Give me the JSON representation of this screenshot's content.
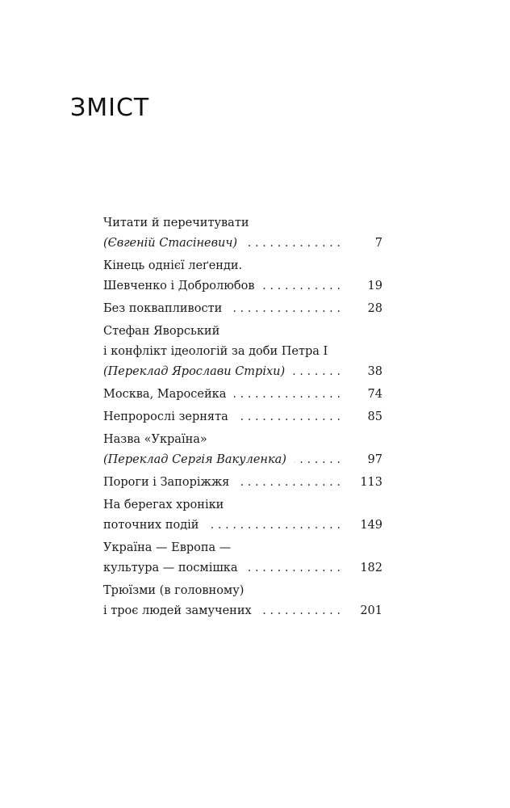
{
  "title": "ЗМІСТ",
  "entries": [
    {
      "lines": [
        {
          "text": "Читати й перечитувати",
          "italic": false
        },
        {
          "text": "(Євгеній Стасіневич)",
          "italic": true
        }
      ],
      "page": "7"
    },
    {
      "lines": [
        {
          "text": "Кінець однієї леґенди.",
          "italic": false
        },
        {
          "text": "Шевченко і Добролюбов",
          "italic": false
        }
      ],
      "page": "19"
    },
    {
      "lines": [
        {
          "text": "Без поквапливости",
          "italic": false
        }
      ],
      "page": "28"
    },
    {
      "lines": [
        {
          "text": "Стефан Яворський",
          "italic": false
        },
        {
          "text": "і конфлікт ідеологій за доби Петра I",
          "italic": false
        },
        {
          "text": "(Переклад Ярослави Стріхи)",
          "italic": true
        }
      ],
      "page": "38"
    },
    {
      "lines": [
        {
          "text": "Москва, Маросейка",
          "italic": false
        }
      ],
      "page": "74"
    },
    {
      "lines": [
        {
          "text": "Непророслі зернята",
          "italic": false
        }
      ],
      "page": "85"
    },
    {
      "lines": [
        {
          "text": "Назва «Україна»",
          "italic": false
        },
        {
          "text": "(Переклад Сергія Вакуленка)",
          "italic": true
        }
      ],
      "page": "97"
    },
    {
      "lines": [
        {
          "text": "Пороги і Запоріжжя",
          "italic": false
        }
      ],
      "page": "113"
    },
    {
      "lines": [
        {
          "text": "На берегах хроніки",
          "italic": false
        },
        {
          "text": "поточних подій",
          "italic": false
        }
      ],
      "page": "149"
    },
    {
      "lines": [
        {
          "text": "Україна — Европа —",
          "italic": false
        },
        {
          "text": "культура — посмішка",
          "italic": false
        }
      ],
      "page": "182"
    },
    {
      "lines": [
        {
          "text": "Трюїзми (в головному)",
          "italic": false
        },
        {
          "text": "і троє людей замучених",
          "italic": false
        }
      ],
      "page": "201"
    }
  ]
}
